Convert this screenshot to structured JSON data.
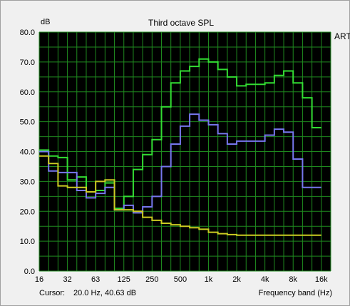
{
  "chart_data": {
    "type": "line",
    "title": "Third octave SPL",
    "ylabel": "dB",
    "xlabel": "Frequency band (Hz)",
    "brand": "ARTA",
    "ylim": [
      0,
      80
    ],
    "y_ticks": [
      "0.0",
      "10.0",
      "20.0",
      "30.0",
      "40.0",
      "50.0",
      "60.0",
      "70.0",
      "80.0"
    ],
    "bands": [
      16,
      20,
      25,
      31.5,
      40,
      50,
      63,
      80,
      100,
      125,
      160,
      200,
      250,
      315,
      400,
      500,
      630,
      800,
      1000,
      1250,
      1600,
      2000,
      2500,
      3150,
      4000,
      5000,
      6300,
      8000,
      10000,
      12500,
      16000,
      20000
    ],
    "x_tick_labels": [
      "16",
      "32",
      "63",
      "125",
      "250",
      "500",
      "1k",
      "2k",
      "4k",
      "8k",
      "16k"
    ],
    "x_tick_bands": [
      0,
      3,
      6,
      9,
      12,
      15,
      18,
      21,
      24,
      27,
      30
    ],
    "grid": true,
    "series": [
      {
        "color": "#33dd33",
        "values": [
          40.5,
          38.5,
          38,
          30.5,
          31.5,
          26.5,
          27,
          29.5,
          21,
          25,
          34,
          39,
          44,
          55,
          63,
          67,
          68.5,
          71,
          70,
          67.5,
          65,
          62,
          62.5,
          62.5,
          63,
          65.5,
          67,
          63,
          58,
          48
        ]
      },
      {
        "color": "#7777ee",
        "values": [
          40,
          33.5,
          33,
          33,
          27,
          24.5,
          26,
          28,
          20.5,
          22,
          19.5,
          21.5,
          25,
          35,
          42.5,
          48.5,
          52.5,
          50.5,
          49,
          46,
          42.5,
          43.5,
          43.5,
          43.5,
          45.5,
          47.5,
          46.5,
          37.5,
          28,
          28
        ]
      },
      {
        "color": "#cccc22",
        "values": [
          38.5,
          36,
          28.5,
          28,
          28,
          26.5,
          30,
          30.5,
          20.5,
          20.5,
          20,
          18,
          17,
          16,
          15.5,
          15,
          14.5,
          14,
          13,
          12.5,
          12.2,
          12,
          12,
          12,
          12,
          12,
          12,
          12,
          12,
          12
        ]
      }
    ]
  },
  "status": {
    "cursor_label": "Cursor:",
    "cursor_value": "20.0 Hz, 40.63 dB",
    "xaxis_label": "Frequency band (Hz)"
  }
}
